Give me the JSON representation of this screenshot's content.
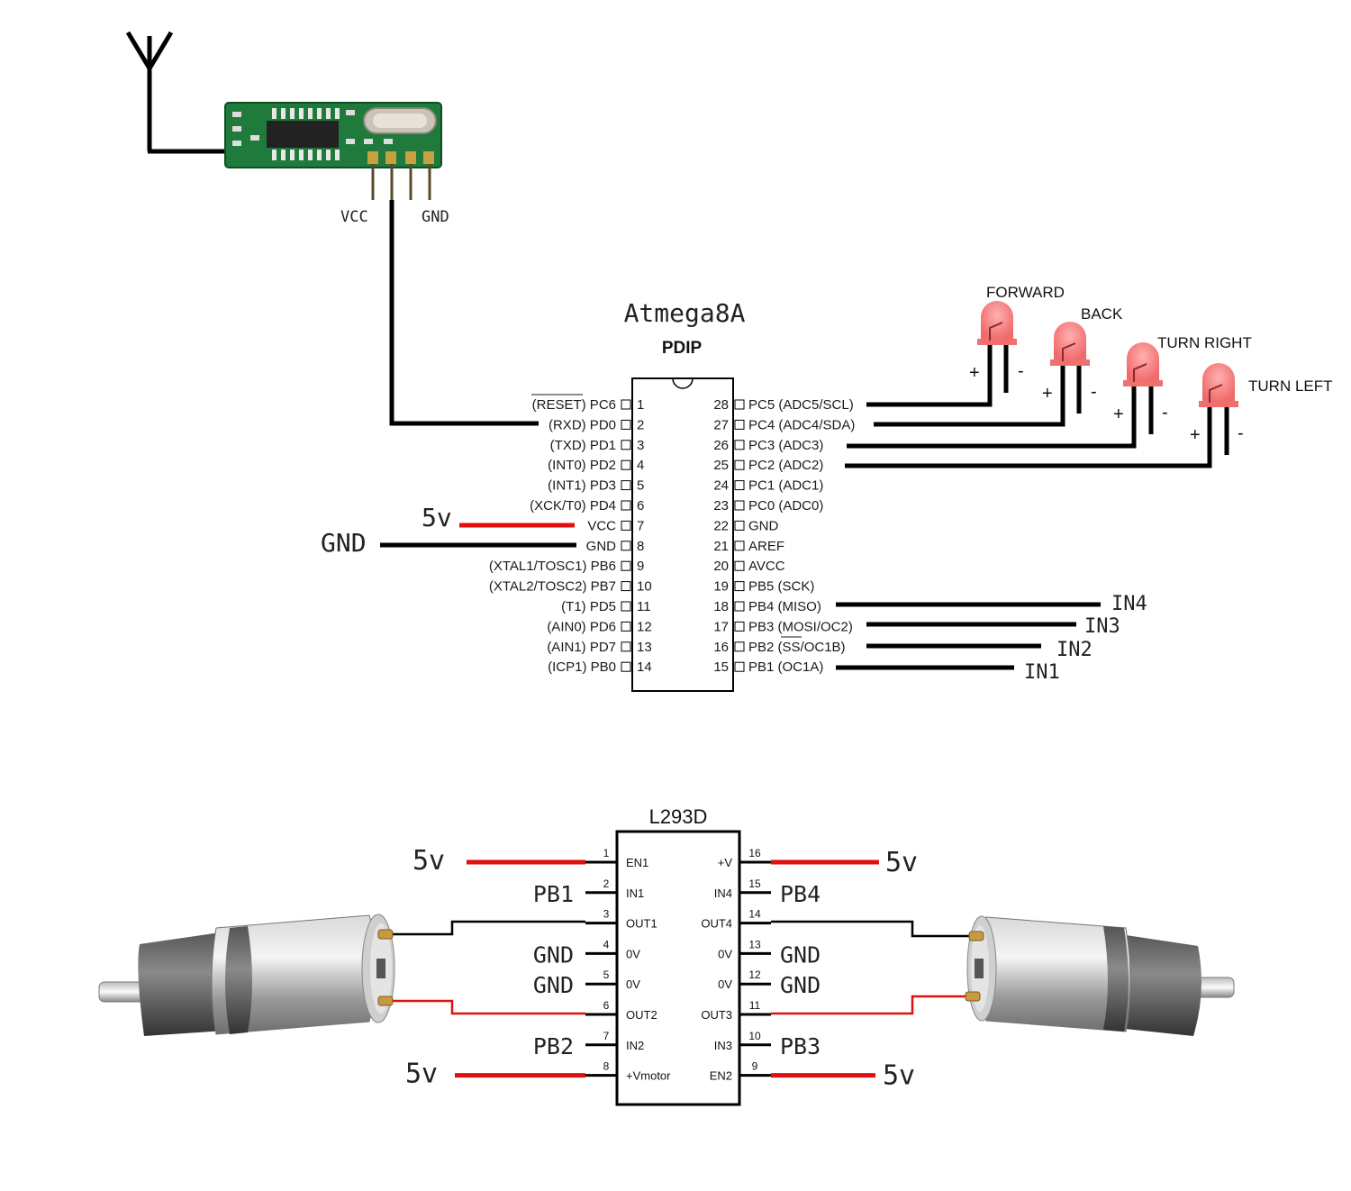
{
  "receiver": {
    "vcc_label": "VCC",
    "gnd_label": "GND"
  },
  "atmega": {
    "title": "Atmega8A",
    "package": "PDIP",
    "left_pins": [
      {
        "num": "1",
        "label": "(RESET) PC6"
      },
      {
        "num": "2",
        "label": "(RXD) PD0"
      },
      {
        "num": "3",
        "label": "(TXD) PD1"
      },
      {
        "num": "4",
        "label": "(INT0) PD2"
      },
      {
        "num": "5",
        "label": "(INT1) PD3"
      },
      {
        "num": "6",
        "label": "(XCK/T0) PD4"
      },
      {
        "num": "7",
        "label": "VCC"
      },
      {
        "num": "8",
        "label": "GND"
      },
      {
        "num": "9",
        "label": "(XTAL1/TOSC1) PB6"
      },
      {
        "num": "10",
        "label": "(XTAL2/TOSC2) PB7"
      },
      {
        "num": "11",
        "label": "(T1) PD5"
      },
      {
        "num": "12",
        "label": "(AIN0) PD6"
      },
      {
        "num": "13",
        "label": "(AIN1) PD7"
      },
      {
        "num": "14",
        "label": "(ICP1) PB0"
      }
    ],
    "right_pins": [
      {
        "num": "28",
        "label": "PC5 (ADC5/SCL)"
      },
      {
        "num": "27",
        "label": "PC4 (ADC4/SDA)"
      },
      {
        "num": "26",
        "label": "PC3 (ADC3)"
      },
      {
        "num": "25",
        "label": "PC2 (ADC2)"
      },
      {
        "num": "24",
        "label": "PC1 (ADC1)"
      },
      {
        "num": "23",
        "label": "PC0 (ADC0)"
      },
      {
        "num": "22",
        "label": "GND"
      },
      {
        "num": "21",
        "label": "AREF"
      },
      {
        "num": "20",
        "label": "AVCC"
      },
      {
        "num": "19",
        "label": "PB5 (SCK)"
      },
      {
        "num": "18",
        "label": "PB4 (MISO)"
      },
      {
        "num": "17",
        "label": "PB3 (MOSI/OC2)"
      },
      {
        "num": "16",
        "label": "PB2 (SS/OC1B)"
      },
      {
        "num": "15",
        "label": "PB1 (OC1A)"
      }
    ],
    "supply_5v": "5v",
    "supply_gnd": "GND",
    "outputs": [
      "IN4",
      "IN3",
      "IN2",
      "IN1"
    ]
  },
  "leds": [
    {
      "label": "FORWARD",
      "plus": "+",
      "minus": "-"
    },
    {
      "label": "BACK",
      "plus": "+",
      "minus": "-"
    },
    {
      "label": "TURN RIGHT",
      "plus": "+",
      "minus": "-"
    },
    {
      "label": "TURN LEFT",
      "plus": "+",
      "minus": "-"
    }
  ],
  "l293d": {
    "title": "L293D",
    "left_pins": [
      {
        "num": "1",
        "label": "EN1",
        "ext": "5v"
      },
      {
        "num": "2",
        "label": "IN1",
        "ext": "PB1"
      },
      {
        "num": "3",
        "label": "OUT1",
        "ext": ""
      },
      {
        "num": "4",
        "label": "0V",
        "ext": "GND"
      },
      {
        "num": "5",
        "label": "0V",
        "ext": "GND"
      },
      {
        "num": "6",
        "label": "OUT2",
        "ext": ""
      },
      {
        "num": "7",
        "label": "IN2",
        "ext": "PB2"
      },
      {
        "num": "8",
        "label": "+Vmotor",
        "ext": "5v"
      }
    ],
    "right_pins": [
      {
        "num": "16",
        "label": "+V",
        "ext": "5v"
      },
      {
        "num": "15",
        "label": "IN4",
        "ext": "PB4"
      },
      {
        "num": "14",
        "label": "OUT4",
        "ext": ""
      },
      {
        "num": "13",
        "label": "0V",
        "ext": "GND"
      },
      {
        "num": "12",
        "label": "0V",
        "ext": "GND"
      },
      {
        "num": "11",
        "label": "OUT3",
        "ext": ""
      },
      {
        "num": "10",
        "label": "IN3",
        "ext": "PB3"
      },
      {
        "num": "9",
        "label": "EN2",
        "ext": "5v"
      }
    ]
  },
  "colors": {
    "wire": "#000000",
    "power": "#e01010",
    "led": "#f07070",
    "pcb": "#1e7a3a"
  }
}
